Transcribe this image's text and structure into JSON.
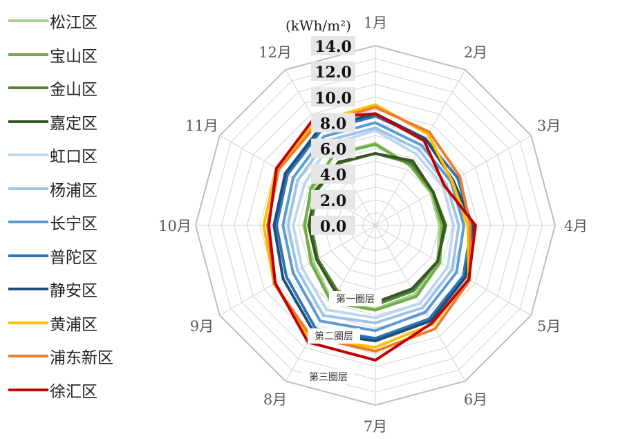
{
  "chart_data": {
    "type": "radar",
    "unit": "(kWh/m²)",
    "categories": [
      "1月",
      "2月",
      "3月",
      "4月",
      "5月",
      "6月",
      "7月",
      "8月",
      "9月",
      "10月",
      "11月",
      "12月"
    ],
    "rlim": [
      0,
      14
    ],
    "radial_ticks": [
      "0.0",
      "2.0",
      "4.0",
      "6.0",
      "8.0",
      "10.0",
      "12.0",
      "14.0"
    ],
    "grid": true,
    "legend_position": "left",
    "ring_labels": [
      "第一圈层",
      "第二圈层",
      "第三圈层"
    ],
    "series": [
      {
        "name": "松江区",
        "color": "#a9d18e",
        "values": [
          6.4,
          5.4,
          5.0,
          5.0,
          5.6,
          6.2,
          6.5,
          6.8,
          5.6,
          5.6,
          5.6,
          6.4
        ]
      },
      {
        "name": "宝山区",
        "color": "#70ad47",
        "values": [
          6.3,
          5.4,
          5.1,
          5.2,
          5.8,
          6.4,
          6.6,
          6.9,
          5.8,
          5.5,
          5.8,
          6.4
        ]
      },
      {
        "name": "金山区",
        "color": "#548235",
        "values": [
          5.6,
          5.6,
          5.2,
          5.5,
          5.6,
          5.9,
          6.2,
          5.9,
          5.2,
          5.0,
          5.3,
          5.6
        ]
      },
      {
        "name": "嘉定区",
        "color": "#375623",
        "values": [
          5.6,
          5.8,
          5.2,
          5.4,
          5.6,
          5.7,
          6.0,
          6.1,
          5.3,
          5.2,
          5.4,
          5.7
        ]
      },
      {
        "name": "虹口区",
        "color": "#bdd7ee",
        "values": [
          7.4,
          6.4,
          6.1,
          6.1,
          6.5,
          7.0,
          7.2,
          7.6,
          6.6,
          6.4,
          6.4,
          7.2
        ]
      },
      {
        "name": "杨浦区",
        "color": "#9dc3e6",
        "values": [
          7.6,
          6.8,
          6.4,
          6.5,
          6.9,
          7.4,
          7.6,
          8.1,
          7.0,
          6.8,
          7.0,
          7.6
        ]
      },
      {
        "name": "长宁区",
        "color": "#5b9bd5",
        "values": [
          8.0,
          7.2,
          6.8,
          6.9,
          7.3,
          7.8,
          8.2,
          8.6,
          7.4,
          7.2,
          7.4,
          8.0
        ]
      },
      {
        "name": "普陀区",
        "color": "#2e75b6",
        "values": [
          8.5,
          7.8,
          7.4,
          7.5,
          7.9,
          8.4,
          8.8,
          9.3,
          8.0,
          7.7,
          7.9,
          8.5
        ]
      },
      {
        "name": "静安区",
        "color": "#1f4e79",
        "values": [
          8.7,
          7.8,
          7.0,
          7.6,
          8.1,
          8.6,
          9.0,
          9.6,
          8.3,
          7.9,
          8.1,
          8.7
        ]
      },
      {
        "name": "黄浦区",
        "color": "#ffc000",
        "values": [
          9.4,
          8.2,
          6.9,
          7.2,
          8.4,
          8.9,
          9.5,
          10.2,
          9.1,
          8.7,
          8.9,
          9.3
        ]
      },
      {
        "name": "浦东新区",
        "color": "#ed7d31",
        "values": [
          9.2,
          8.4,
          7.6,
          7.4,
          8.5,
          9.3,
          9.8,
          10.0,
          9.1,
          8.4,
          8.7,
          9.1
        ]
      },
      {
        "name": "徐汇区",
        "color": "#c00000",
        "values": [
          8.7,
          7.6,
          6.2,
          7.8,
          8.4,
          8.8,
          10.5,
          10.5,
          9.0,
          8.3,
          8.9,
          9.6
        ]
      }
    ]
  }
}
